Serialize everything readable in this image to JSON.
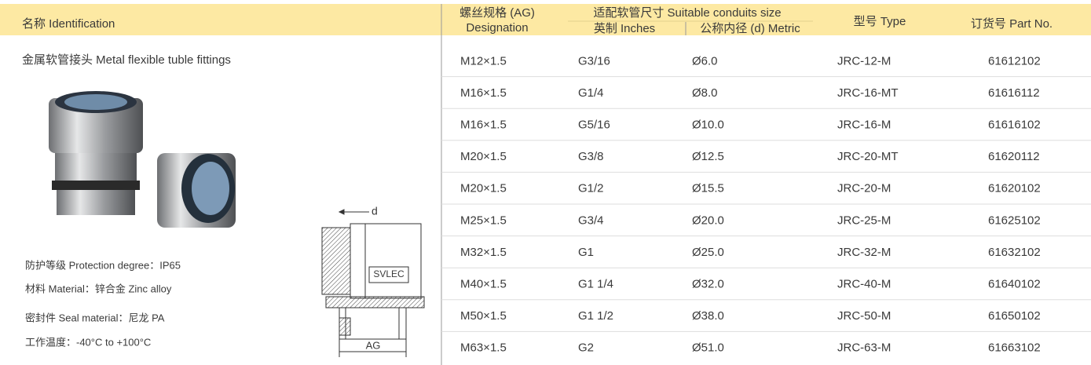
{
  "header": {
    "identification": "名称 Identification",
    "designation": [
      "螺丝规格 (AG)",
      "Designation"
    ],
    "conduits": "适配软管尺寸 Suitable conduits size",
    "inches": "英制 Inches",
    "metric": "公称内径 (d) Metric",
    "type": "型号 Type",
    "part_no": "订货号 Part No."
  },
  "product": {
    "name": "金属软管接头 Metal flexible tuble fittings",
    "specs": [
      "防护等级 Protection degree：IP65",
      "材料 Material：锌合金 Zinc alloy",
      "密封件 Seal material：尼龙 PA",
      "工作温度：-40°C to +100°C"
    ]
  },
  "drawing": {
    "d": "d",
    "brand": "SVLEC",
    "ag": "AG"
  },
  "table": {
    "rows": [
      [
        "M12×1.5",
        "G3/16",
        "Ø6.0",
        "JRC-12-M",
        "61612102"
      ],
      [
        "M16×1.5",
        "G1/4",
        "Ø8.0",
        "JRC-16-MT",
        "61616112"
      ],
      [
        "M16×1.5",
        "G5/16",
        "Ø10.0",
        "JRC-16-M",
        "61616102"
      ],
      [
        "M20×1.5",
        "G3/8",
        "Ø12.5",
        "JRC-20-MT",
        "61620112"
      ],
      [
        "M20×1.5",
        "G1/2",
        "Ø15.5",
        "JRC-20-M",
        "61620102"
      ],
      [
        "M25×1.5",
        "G3/4",
        "Ø20.0",
        "JRC-25-M",
        "61625102"
      ],
      [
        "M32×1.5",
        "G1",
        "Ø25.0",
        "JRC-32-M",
        "61632102"
      ],
      [
        "M40×1.5",
        "G1 1/4",
        "Ø32.0",
        "JRC-40-M",
        "61640102"
      ],
      [
        "M50×1.5",
        "G1 1/2",
        "Ø38.0",
        "JRC-50-M",
        "61650102"
      ],
      [
        "M63×1.5",
        "G2",
        "Ø51.0",
        "JRC-63-M",
        "61663102"
      ]
    ]
  }
}
